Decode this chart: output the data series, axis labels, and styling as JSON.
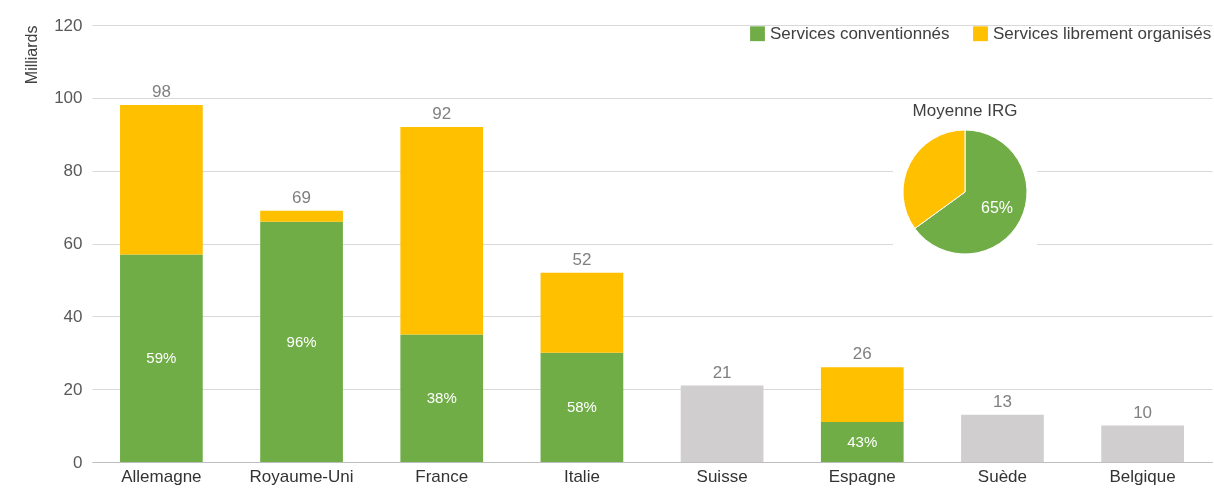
{
  "chart_data": [
    {
      "type": "bar",
      "stacked": true,
      "ylabel": "Milliards",
      "categories": [
        "Allemagne",
        "Royaume-Uni",
        "France",
        "Italie",
        "Suisse",
        "Espagne",
        "Suède",
        "Belgique"
      ],
      "series": [
        {
          "name": "Services conventionnés",
          "color": "#70ad47",
          "values": [
            57,
            66,
            35,
            30,
            null,
            11,
            null,
            null
          ]
        },
        {
          "name": "Services librement organisés",
          "color": "#ffc000",
          "values": [
            41,
            3,
            57,
            22,
            null,
            15,
            null,
            null
          ]
        },
        {
          "color": "#d0cece",
          "values": [
            null,
            null,
            null,
            null,
            21,
            null,
            13,
            10
          ]
        }
      ],
      "totals": [
        "98",
        "69",
        "92",
        "52",
        "21",
        "26",
        "13",
        "10"
      ],
      "annotations": [
        "59%",
        "96%",
        "38%",
        "58%",
        "43%"
      ],
      "ylim": [
        0,
        120
      ],
      "yticks": [
        0,
        20,
        40,
        60,
        80,
        100,
        120
      ],
      "grid": "y",
      "legend": "top right"
    },
    {
      "type": "pie",
      "title": "Moyenne IRG",
      "categories": [
        null,
        null
      ],
      "values": [
        65,
        35
      ],
      "colors": [
        "#70ad47",
        "#ffc000"
      ],
      "value_labels": [
        "65%",
        null
      ]
    }
  ]
}
